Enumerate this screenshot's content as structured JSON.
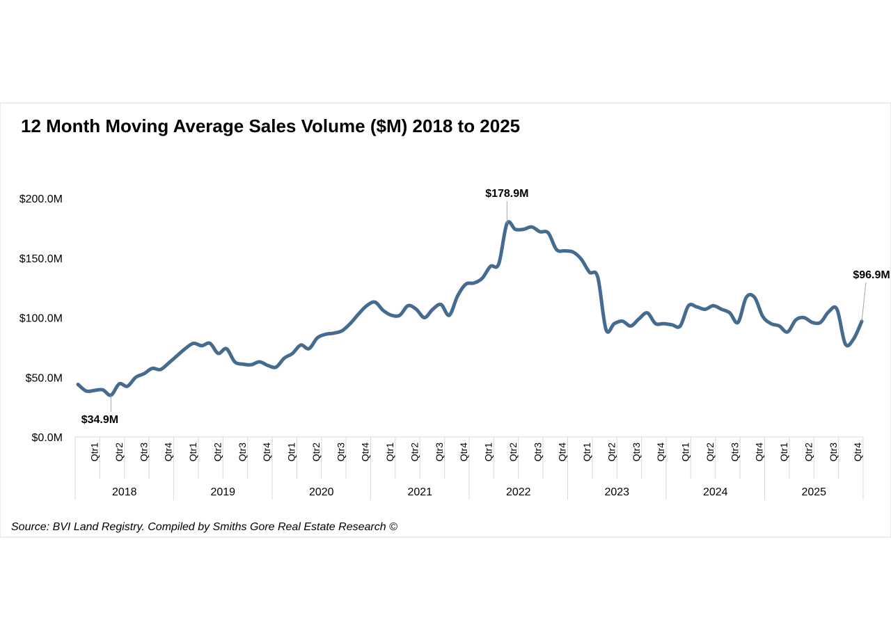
{
  "chart_data": {
    "type": "line",
    "title": "12 Month Moving Average Sales Volume ($M) 2018 to 2025",
    "xlabel": "",
    "ylabel": "",
    "ylim": [
      0,
      200
    ],
    "y_ticks": [
      {
        "value": 0,
        "label": "$0.0M"
      },
      {
        "value": 50,
        "label": "$50.0M"
      },
      {
        "value": 100,
        "label": "$100.0M"
      },
      {
        "value": 150,
        "label": "$150.0M"
      },
      {
        "value": 200,
        "label": "$200.0M"
      }
    ],
    "grid": false,
    "legend": "none",
    "line_color": "#456b8f",
    "years": [
      "2018",
      "2019",
      "2020",
      "2021",
      "2022",
      "2023",
      "2024",
      "2025"
    ],
    "quarter_labels": [
      "Qtr1",
      "Qtr2",
      "Qtr3",
      "Qtr4"
    ],
    "x_unit": "month index from Jan 2018 (0) to Dec 2025 (95)",
    "series": [
      {
        "name": "12 Month Moving Average Sales Volume ($M)",
        "values": [
          44,
          38.5,
          39,
          39.5,
          35,
          44.5,
          42.5,
          50,
          53,
          57.5,
          56.5,
          62,
          68,
          74,
          78.5,
          76.5,
          78.5,
          70,
          74,
          63,
          61,
          60.5,
          63,
          60,
          58.5,
          66,
          70,
          77,
          74,
          83,
          86,
          87,
          89,
          95,
          103,
          110,
          113,
          106,
          102,
          102,
          110,
          107,
          100,
          107,
          111,
          102,
          118,
          128,
          129,
          133,
          143,
          145,
          178.9,
          174,
          174,
          176,
          172,
          171,
          157,
          156,
          155,
          149,
          138,
          134,
          90,
          95,
          97,
          93,
          99,
          104,
          95,
          95,
          94,
          93,
          110,
          109,
          107,
          110,
          107,
          104,
          96,
          117,
          117,
          101,
          95,
          93,
          88,
          98,
          100,
          96,
          96,
          105,
          107,
          78,
          82,
          96.9
        ]
      }
    ],
    "annotations": [
      {
        "index": 4,
        "value": 34.9,
        "label": "$34.9M"
      },
      {
        "index": 52,
        "value": 178.9,
        "label": "$178.9M"
      },
      {
        "index": 95,
        "value": 96.9,
        "label": "$96.9M"
      }
    ],
    "source": "Source: BVI Land Registry. Compiled by Smiths Gore Real Estate Research ©"
  }
}
